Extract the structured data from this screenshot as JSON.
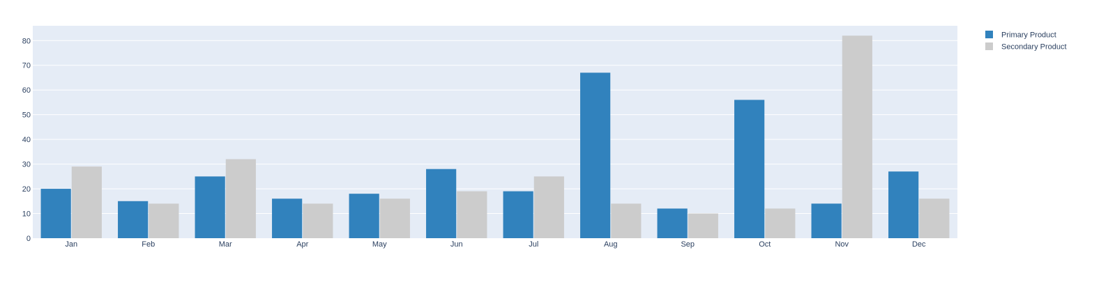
{
  "chart_data": {
    "type": "bar",
    "categories": [
      "Jan",
      "Feb",
      "Mar",
      "Apr",
      "May",
      "Jun",
      "Jul",
      "Aug",
      "Sep",
      "Oct",
      "Nov",
      "Dec"
    ],
    "series": [
      {
        "name": "Primary Product",
        "color": "#3182bd",
        "values": [
          20,
          15,
          25,
          16,
          18,
          28,
          19,
          67,
          12,
          56,
          14,
          27
        ]
      },
      {
        "name": "Secondary Product",
        "color": "#cccccc",
        "values": [
          29,
          14,
          32,
          14,
          16,
          19,
          25,
          14,
          10,
          12,
          82,
          16
        ]
      }
    ],
    "ylim": [
      0,
      86
    ],
    "yticks": [
      0,
      10,
      20,
      30,
      40,
      50,
      60,
      70,
      80
    ],
    "grid": true,
    "legend_position": "top-right",
    "plot_background": "#e5ecf6",
    "gridline_color": "#ffffff"
  }
}
